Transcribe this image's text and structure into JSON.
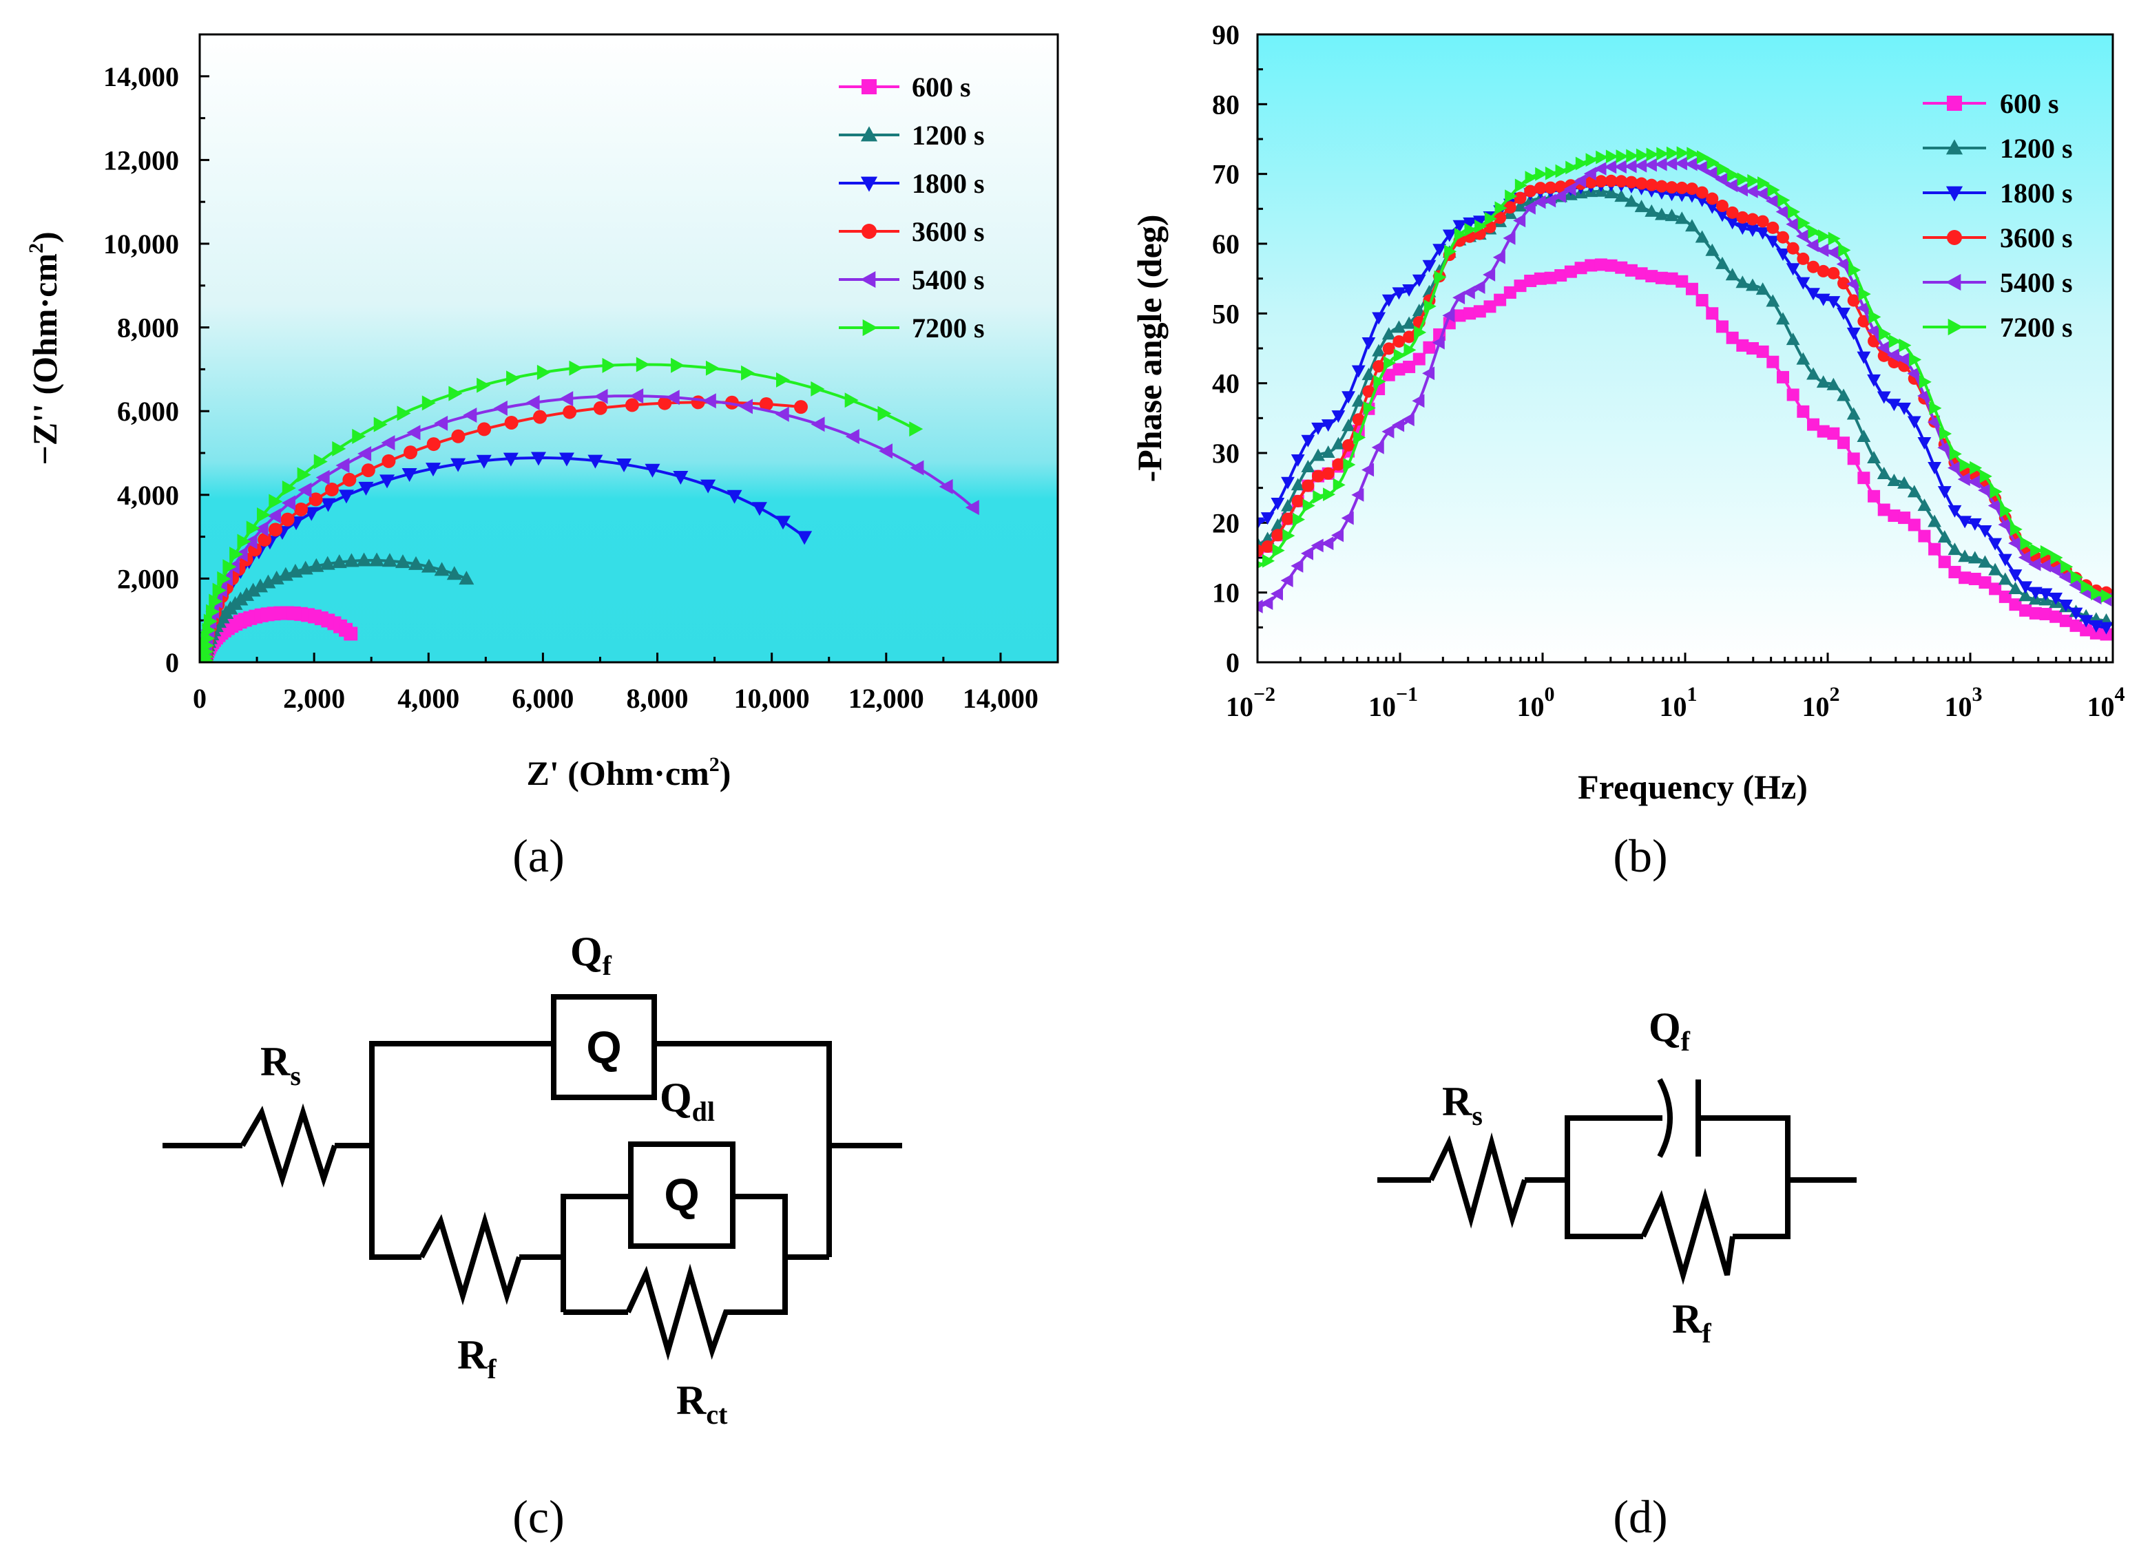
{
  "chart_data": [
    {
      "type": "scatter",
      "id": "a",
      "panel_label": "(a)",
      "title": "",
      "xlabel": "Z' (Ohm·cm²)",
      "ylabel": "−Z'' (Ohm·cm²)",
      "xlim": [
        0,
        15000
      ],
      "ylim": [
        0,
        15000
      ],
      "xticks": [
        "0",
        "2,000",
        "4,000",
        "6,000",
        "8,000",
        "10,000",
        "12,000",
        "14,000"
      ],
      "yticks": [
        "0",
        "2,000",
        "4,000",
        "6,000",
        "8,000",
        "10,000",
        "12,000",
        "14,000"
      ],
      "legend_position": "top-right",
      "series": [
        {
          "name": "600 s",
          "color": "#ff1fd8",
          "marker": "square",
          "Rs": 100,
          "R": 2800,
          "depress": 0.84,
          "end_theta": 0.62
        },
        {
          "name": "1200 s",
          "color": "#1a7b7b",
          "marker": "triangle-up",
          "Rs": 100,
          "R": 5800,
          "depress": 0.84,
          "end_theta": 0.96
        },
        {
          "name": "1800 s",
          "color": "#1212ef",
          "marker": "triangle-down",
          "Rs": 100,
          "R": 11700,
          "depress": 0.835,
          "end_theta": 0.66
        },
        {
          "name": "3600 s",
          "color": "#ff1f1f",
          "marker": "circle",
          "Rs": 100,
          "R": 17500,
          "depress": 0.71,
          "end_theta": 1.38
        },
        {
          "name": "5400 s",
          "color": "#8a2ee6",
          "marker": "triangle-left",
          "Rs": 100,
          "R": 14800,
          "depress": 0.86,
          "end_theta": 0.62
        },
        {
          "name": "7200 s",
          "color": "#22ee22",
          "marker": "triangle-right",
          "Rs": 100,
          "R": 15300,
          "depress": 0.93,
          "end_theta": 0.9
        }
      ]
    },
    {
      "type": "scatter",
      "id": "b",
      "panel_label": "(b)",
      "title": "",
      "xlabel": "Frequency (Hz)",
      "ylabel": "-Phase angle (deg)",
      "xscale": "log",
      "xlim": [
        0.01,
        10000
      ],
      "ylim": [
        0,
        90
      ],
      "xticks": [
        {
          "base": "10",
          "exp": "−2"
        },
        {
          "base": "10",
          "exp": "−1"
        },
        {
          "base": "10",
          "exp": "0"
        },
        {
          "base": "10",
          "exp": "1"
        },
        {
          "base": "10",
          "exp": "2"
        },
        {
          "base": "10",
          "exp": "3"
        },
        {
          "base": "10",
          "exp": "4"
        }
      ],
      "yticks": [
        "0",
        "10",
        "20",
        "30",
        "40",
        "50",
        "60",
        "70",
        "80",
        "90"
      ],
      "legend_position": "top-right",
      "series": [
        {
          "name": "600 s",
          "color": "#ff1fd8",
          "marker": "square",
          "points": [
            [
              0.01,
              16
            ],
            [
              0.03,
              27
            ],
            [
              0.1,
              42
            ],
            [
              0.3,
              50
            ],
            [
              1,
              55
            ],
            [
              2.5,
              57
            ],
            [
              8,
              55
            ],
            [
              30,
              45
            ],
            [
              100,
              33
            ],
            [
              300,
              21
            ],
            [
              1000,
              12
            ],
            [
              3000,
              7
            ],
            [
              9000,
              4
            ]
          ]
        },
        {
          "name": "1200 s",
          "color": "#1a7b7b",
          "marker": "triangle-up",
          "points": [
            [
              0.01,
              17
            ],
            [
              0.03,
              30
            ],
            [
              0.1,
              48
            ],
            [
              0.3,
              61
            ],
            [
              1,
              66.5
            ],
            [
              2.5,
              67.5
            ],
            [
              8,
              64
            ],
            [
              30,
              54
            ],
            [
              100,
              40
            ],
            [
              300,
              26
            ],
            [
              1000,
              15
            ],
            [
              3000,
              9
            ],
            [
              9000,
              6
            ]
          ]
        },
        {
          "name": "1800 s",
          "color": "#1212ef",
          "marker": "triangle-down",
          "points": [
            [
              0.01,
              20
            ],
            [
              0.03,
              34
            ],
            [
              0.1,
              53
            ],
            [
              0.3,
              63
            ],
            [
              1,
              67.5
            ],
            [
              3,
              68.5
            ],
            [
              10,
              67
            ],
            [
              30,
              62
            ],
            [
              100,
              52
            ],
            [
              300,
              37
            ],
            [
              1000,
              20
            ],
            [
              3000,
              10
            ],
            [
              9000,
              5
            ]
          ]
        },
        {
          "name": "3600 s",
          "color": "#ff1f1f",
          "marker": "circle",
          "points": [
            [
              0.01,
              16
            ],
            [
              0.03,
              27
            ],
            [
              0.1,
              46
            ],
            [
              0.3,
              61
            ],
            [
              1,
              68
            ],
            [
              3,
              69
            ],
            [
              10,
              68
            ],
            [
              30,
              63.5
            ],
            [
              100,
              56
            ],
            [
              300,
              43
            ],
            [
              1000,
              27
            ],
            [
              3000,
              15
            ],
            [
              9000,
              10
            ]
          ]
        },
        {
          "name": "5400 s",
          "color": "#8a2ee6",
          "marker": "triangle-left",
          "points": [
            [
              0.01,
              8
            ],
            [
              0.03,
              17
            ],
            [
              0.1,
              34
            ],
            [
              0.3,
              53
            ],
            [
              1,
              66
            ],
            [
              3,
              71
            ],
            [
              10,
              71.5
            ],
            [
              30,
              67.5
            ],
            [
              100,
              59
            ],
            [
              300,
              44
            ],
            [
              1000,
              26
            ],
            [
              3000,
              14
            ],
            [
              9000,
              9
            ]
          ]
        },
        {
          "name": "7200 s",
          "color": "#22ee22",
          "marker": "triangle-right",
          "points": [
            [
              0.01,
              14
            ],
            [
              0.03,
              24
            ],
            [
              0.1,
              44
            ],
            [
              0.3,
              62
            ],
            [
              1,
              70
            ],
            [
              3,
              72.5
            ],
            [
              10,
              73
            ],
            [
              30,
              69
            ],
            [
              100,
              61
            ],
            [
              300,
              46
            ],
            [
              1000,
              28
            ],
            [
              3000,
              16
            ],
            [
              9000,
              9.5
            ]
          ]
        }
      ]
    }
  ],
  "circuits": {
    "c": {
      "panel_label": "(c)",
      "rs": {
        "main": "R",
        "sub": "s"
      },
      "qf": {
        "main": "Q",
        "sub": "f"
      },
      "qdl": {
        "main": "Q",
        "sub": "dl"
      },
      "rf": {
        "main": "R",
        "sub": "f"
      },
      "rct": {
        "main": "R",
        "sub": "ct"
      },
      "cpe_glyph": "Q"
    },
    "d": {
      "panel_label": "(d)",
      "rs": {
        "main": "R",
        "sub": "s"
      },
      "qf": {
        "main": "Q",
        "sub": "f"
      },
      "rf": {
        "main": "R",
        "sub": "f"
      }
    }
  }
}
